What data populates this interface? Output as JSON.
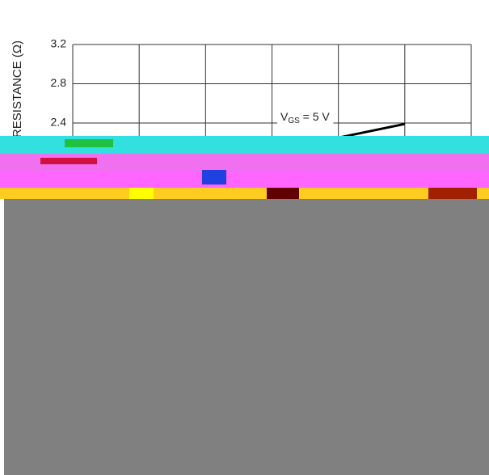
{
  "chart_data": {
    "type": "line",
    "ylabel": "RESISTANCE (Ω)",
    "annotation": [
      "V",
      "GS",
      " = 5 V"
    ],
    "xlim": [
      0,
      6
    ],
    "ylim": [
      2.0,
      3.2
    ],
    "yticks": [
      2.4,
      2.8,
      3.2
    ],
    "grid": true,
    "series": [
      {
        "name": "V_GS = 5 V",
        "color": "#000000",
        "x": [
          4,
          5
        ],
        "values": [
          2.25,
          2.39
        ]
      }
    ]
  }
}
